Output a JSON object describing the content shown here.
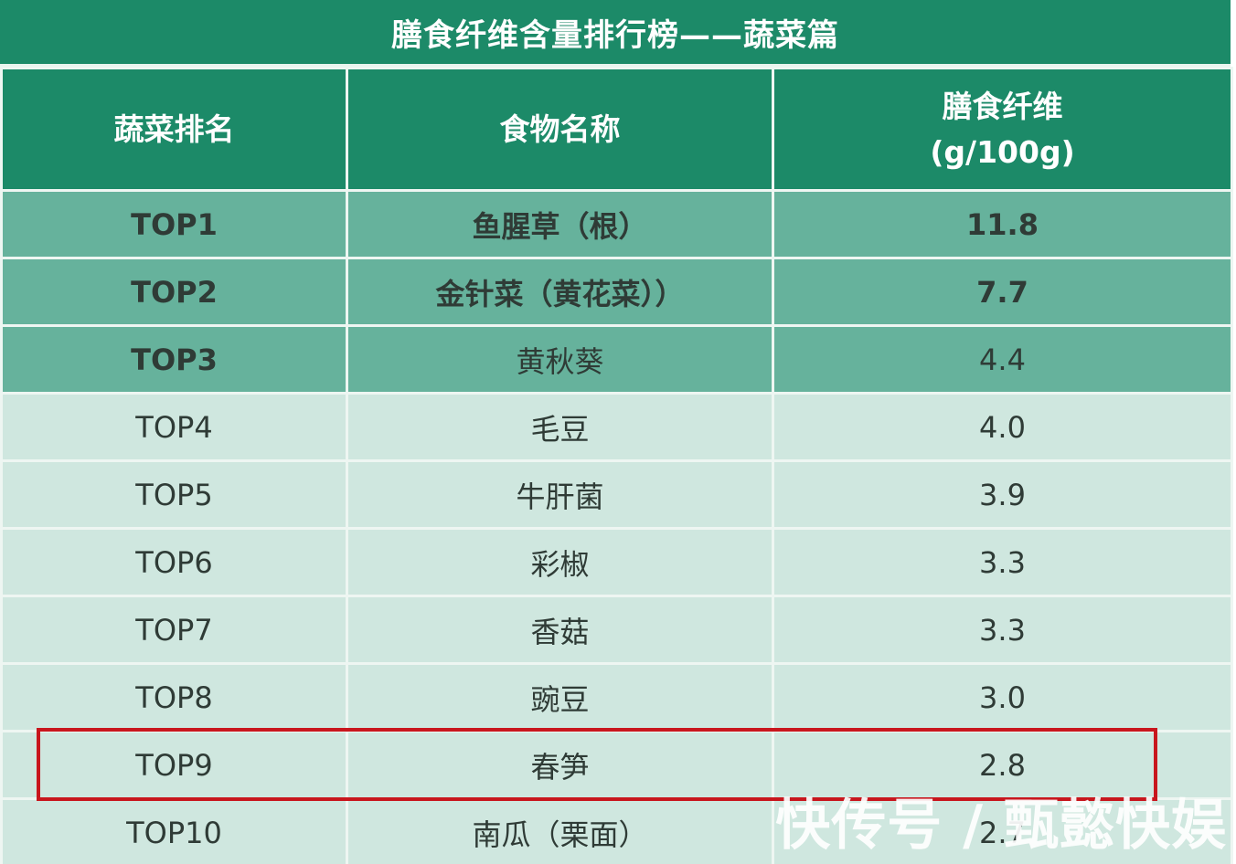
{
  "title": "膳食纤维含量排行榜——蔬菜篇",
  "headers": {
    "rank": "蔬菜排名",
    "name": "食物名称",
    "fiber_line1": "膳食纤维",
    "fiber_line2": "(g/100g)"
  },
  "rows": [
    {
      "rank": "TOP1",
      "name": "鱼腥草（根）",
      "fiber": "11.8"
    },
    {
      "rank": "TOP2",
      "name": "金针菜（黄花菜））",
      "fiber": "7.7"
    },
    {
      "rank": "TOP3",
      "name": "黄秋葵",
      "fiber": "4.4"
    },
    {
      "rank": "TOP4",
      "name": "毛豆",
      "fiber": "4.0"
    },
    {
      "rank": "TOP5",
      "name": "牛肝菌",
      "fiber": "3.9"
    },
    {
      "rank": "TOP6",
      "name": "彩椒",
      "fiber": "3.3"
    },
    {
      "rank": "TOP7",
      "name": "香菇",
      "fiber": "3.3"
    },
    {
      "rank": "TOP8",
      "name": "豌豆",
      "fiber": "3.0"
    },
    {
      "rank": "TOP9",
      "name": "春笋",
      "fiber": "2.8"
    },
    {
      "rank": "TOP10",
      "name": "南瓜（栗面）",
      "fiber": "2.7"
    }
  ],
  "highlight_row": "TOP9",
  "watermark": "快传号 / 甄懿快娱",
  "colors": {
    "header_green": "#1c8a68",
    "top3_green": "#66b29c",
    "rest_green": "#cfe7df",
    "highlight_red": "#c8161d"
  }
}
